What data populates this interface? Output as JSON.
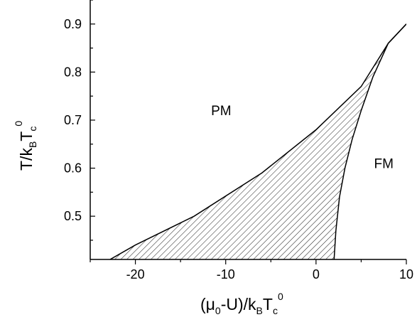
{
  "chart_data": {
    "type": "area",
    "xlim": [
      -25,
      10
    ],
    "ylim": [
      0.41,
      0.95
    ],
    "x_ticks": [
      -20,
      -10,
      0,
      10
    ],
    "x_tick_labels": [
      "-20",
      "-10",
      "0",
      "10"
    ],
    "y_ticks": [
      0.5,
      0.6,
      0.7,
      0.8,
      0.9
    ],
    "y_tick_labels": [
      "0.5",
      "0.6",
      "0.7",
      "0.8",
      "0.9"
    ],
    "grid": false,
    "regions": [
      {
        "name": "PM",
        "x": -10.5,
        "y": 0.71
      },
      {
        "name": "FM",
        "x": 7.5,
        "y": 0.6
      }
    ],
    "series": [
      {
        "name": "upper boundary",
        "x": [
          -22.8,
          -20,
          -13.5,
          -6,
          0,
          5,
          8,
          10
        ],
        "y": [
          0.41,
          0.44,
          0.5,
          0.59,
          0.68,
          0.77,
          0.86,
          0.9
        ]
      },
      {
        "name": "lower boundary",
        "x": [
          2.0,
          2.2,
          2.6,
          3.2,
          4.0,
          5.0,
          6.3,
          8.0,
          10
        ],
        "y": [
          0.41,
          0.47,
          0.54,
          0.6,
          0.66,
          0.72,
          0.79,
          0.86,
          0.9
        ]
      }
    ],
    "hatched_region": "between upper and lower boundary",
    "xlabel": {
      "mu": "(μ",
      "sub0": "0",
      "mid": "-U)/k",
      "subB": "B",
      "T": "T",
      "subc": "c",
      "sup0": "0"
    },
    "ylabel": {
      "main": "T/k",
      "subB": "B",
      "T": "T",
      "subc": "c",
      "sup0": "0"
    }
  }
}
